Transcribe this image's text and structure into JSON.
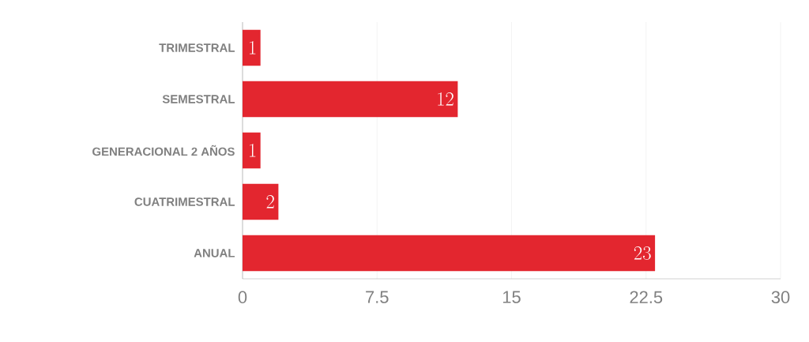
{
  "chart_data": {
    "type": "bar",
    "orientation": "horizontal",
    "categories": [
      "TRIMESTRAL",
      "SEMESTRAL",
      "GENERACIONAL 2 AÑOS",
      "CUATRIMESTRAL",
      "ANUAL"
    ],
    "values": [
      1,
      12,
      1,
      2,
      23
    ],
    "color": "#e3262f",
    "xlim": [
      0,
      30
    ],
    "xticks": [
      0,
      7.5,
      15,
      22.5,
      30
    ],
    "grid": "x",
    "data_labels": true
  }
}
